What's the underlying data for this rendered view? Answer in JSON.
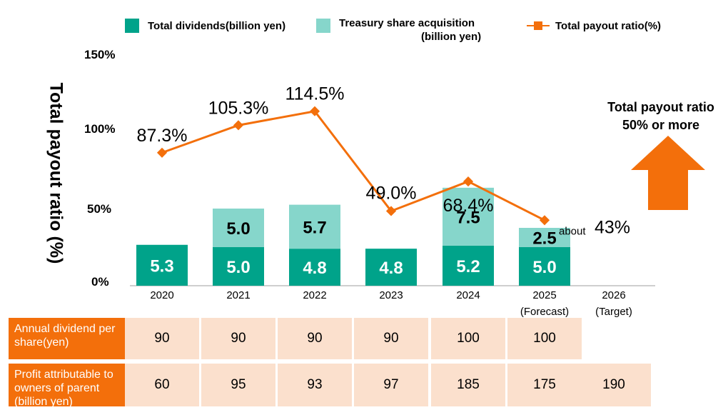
{
  "legend": {
    "dividends": "Total dividends(billion yen)",
    "treasury_line1": "Treasury share acquisition",
    "treasury_line2": "(billion yen)",
    "payout": "Total payout ratio(%)"
  },
  "colors": {
    "dividends": "#00a38a",
    "treasury": "#86d6cb",
    "payout": "#f36f0b",
    "cell": "#fbe0cd"
  },
  "chart_data": {
    "type": "bar",
    "title": "",
    "ylabel": "Total payout ratio (%)",
    "ylim": [
      0,
      150
    ],
    "yticks": [
      "0%",
      "50%",
      "100%",
      "150%"
    ],
    "categories": [
      "2020",
      "2021",
      "2022",
      "2023",
      "2024",
      "2025",
      "2026"
    ],
    "category_notes": [
      "",
      "",
      "",
      "",
      "",
      "(Forecast)",
      "(Target)"
    ],
    "series": [
      {
        "name": "Total dividends(billion yen)",
        "kind": "bar",
        "values": [
          5.3,
          5.0,
          4.8,
          4.8,
          5.2,
          5.0,
          null
        ],
        "labels": [
          "5.3",
          "5.0",
          "4.8",
          "4.8",
          "5.2",
          "5.0",
          ""
        ]
      },
      {
        "name": "Treasury share acquisition (billion yen)",
        "kind": "bar",
        "values": [
          0,
          5.0,
          5.7,
          0,
          7.5,
          2.5,
          null
        ],
        "labels": [
          "",
          "5.0",
          "5.7",
          "",
          "7.5",
          "2.5",
          ""
        ]
      },
      {
        "name": "Total payout ratio(%)",
        "kind": "line",
        "values": [
          87.3,
          105.3,
          114.5,
          49.0,
          68.4,
          43,
          null
        ],
        "labels": [
          "87.3%",
          "105.3%",
          "114.5%",
          "49.0%",
          "68.4%",
          "43%",
          ""
        ],
        "label_prefixes": [
          "",
          "",
          "",
          "",
          "",
          "about",
          ""
        ]
      }
    ]
  },
  "callout": {
    "line1": "Total payout ratio",
    "line2": "50% or more"
  },
  "table": {
    "rows": [
      {
        "header": "Annual dividend per share(yen)",
        "values": [
          "90",
          "90",
          "90",
          "90",
          "100",
          "100",
          ""
        ]
      },
      {
        "header": "Profit attributable to owners of parent (billion yen)",
        "values": [
          "60",
          "95",
          "93",
          "97",
          "185",
          "175",
          "190"
        ]
      }
    ]
  }
}
